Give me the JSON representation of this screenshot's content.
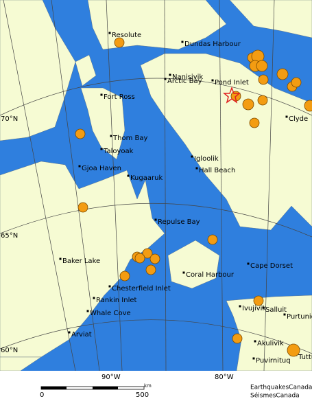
{
  "places": [
    "Resolute",
    "Dundas Harbour",
    "Nanisivik",
    "Arctic Bay",
    "Pond Inlet",
    "Fort Ross",
    "Clyde",
    "Thom Bay",
    "Taloyoak",
    "Gjoa Haven",
    "Igloolik",
    "Hall Beach",
    "Kugaaruk",
    "Repulse Bay",
    "Baker Lake",
    "Cape Dorset",
    "Coral Harbour",
    "Chesterfield Inlet",
    "Rankin Inlet",
    "Ivujivik",
    "Salluit",
    "Purtuniq",
    "Whale Cove",
    "Akulivik",
    "Arviat",
    "Puvirnituq",
    "Tuttu"
  ],
  "latitude_labels": [
    "70°N",
    "65°N",
    "60°N"
  ],
  "longitude_labels": [
    "90°W",
    "80°W"
  ],
  "scale": {
    "start": "0",
    "end": "500",
    "unit": "km"
  },
  "credits": [
    "EarthquakesCanada",
    "SéismesCanada"
  ]
}
